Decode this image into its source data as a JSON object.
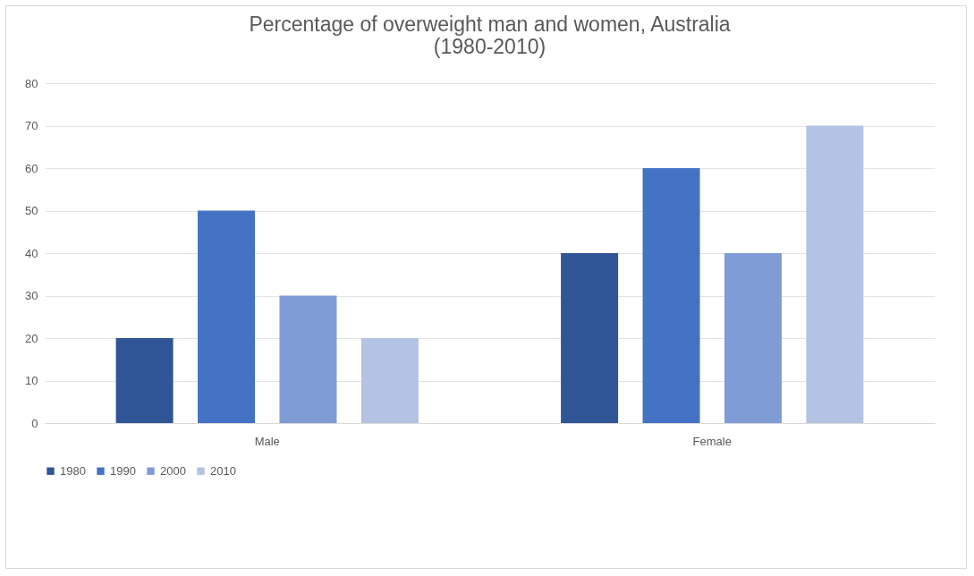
{
  "chart_data": {
    "type": "bar",
    "title": [
      "Percentage of overweight man and women, Australia",
      "(1980-2010)"
    ],
    "categories": [
      "Male",
      "Female"
    ],
    "series": [
      {
        "name": "1980",
        "color": "#2f5597",
        "values": [
          20,
          40
        ]
      },
      {
        "name": "1990",
        "color": "#4472c4",
        "values": [
          50,
          60
        ]
      },
      {
        "name": "2000",
        "color": "#7f9cd6",
        "values": [
          30,
          40
        ]
      },
      {
        "name": "2010",
        "color": "#b4c2e4",
        "values": [
          20,
          70
        ]
      }
    ],
    "ylim": [
      0,
      80
    ],
    "yticks": [
      0,
      10,
      20,
      30,
      40,
      50,
      60,
      70,
      80
    ],
    "grid": "y",
    "legend": "bottom"
  }
}
